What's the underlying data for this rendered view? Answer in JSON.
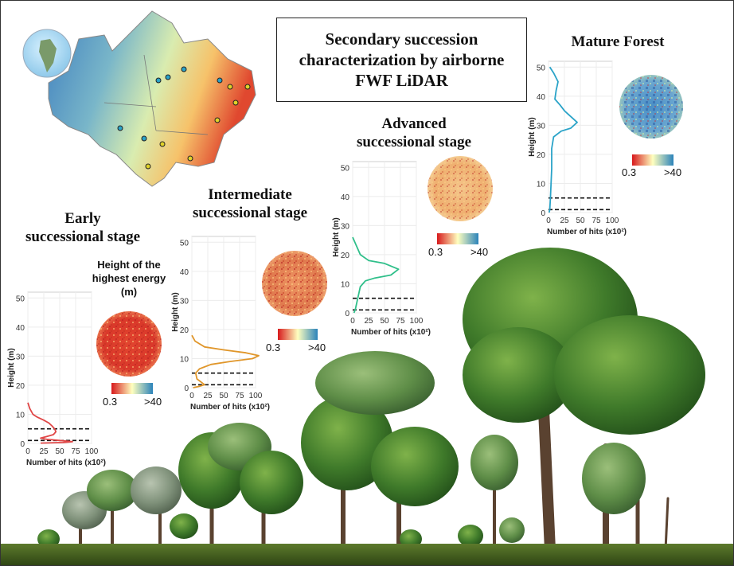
{
  "title": {
    "line1": "Secondary succession",
    "line2": "characterization by airborne",
    "line3": "FWF LiDAR"
  },
  "legend": {
    "title_line1": "Height of the",
    "title_line2": "highest energy",
    "title_line3": "(m)",
    "scale_min": "0.3",
    "scale_max": ">40"
  },
  "colors": {
    "early_curve": "#e04646",
    "intermediate_curve": "#e0962a",
    "advanced_curve": "#2fbf8a",
    "mature_curve": "#2aa3c8",
    "scale_low": "#d7191c",
    "scale_mid": "#ffffbf",
    "scale_high": "#2b83ba"
  },
  "chart_data": [
    {
      "type": "line",
      "stage": "Early successional stage",
      "xlabel": "Number of hits (x10²)",
      "ylabel": "Height (m)",
      "xlim": [
        0,
        100
      ],
      "ylim": [
        0,
        52
      ],
      "xticks": [
        "0",
        "25",
        "50",
        "75",
        "100"
      ],
      "yticks": [
        "0",
        "10",
        "20",
        "30",
        "40",
        "50"
      ],
      "reference_lines_m": [
        1,
        5
      ],
      "points": [
        [
          0,
          14
        ],
        [
          3,
          12
        ],
        [
          8,
          10
        ],
        [
          15,
          9
        ],
        [
          25,
          8
        ],
        [
          33,
          7
        ],
        [
          38,
          6
        ],
        [
          42,
          5
        ],
        [
          44,
          4
        ],
        [
          40,
          3
        ],
        [
          30,
          2.4
        ],
        [
          20,
          1.8
        ],
        [
          30,
          1.4
        ],
        [
          50,
          1
        ],
        [
          70,
          0.6
        ],
        [
          55,
          0.3
        ],
        [
          20,
          0.1
        ]
      ]
    },
    {
      "type": "line",
      "stage": "Intermediate successional stage",
      "xlabel": "Number of hits (x10²)",
      "ylabel": "Height (m)",
      "xlim": [
        0,
        100
      ],
      "ylim": [
        0,
        52
      ],
      "xticks": [
        "0",
        "25",
        "50",
        "75",
        "100"
      ],
      "yticks": [
        "0",
        "10",
        "20",
        "30",
        "40",
        "50"
      ],
      "reference_lines_m": [
        1,
        5
      ],
      "points": [
        [
          0,
          18
        ],
        [
          5,
          16
        ],
        [
          20,
          14
        ],
        [
          50,
          13
        ],
        [
          85,
          12
        ],
        [
          105,
          11
        ],
        [
          95,
          10
        ],
        [
          60,
          9
        ],
        [
          30,
          8
        ],
        [
          12,
          6.5
        ],
        [
          6,
          5
        ],
        [
          8,
          3
        ],
        [
          20,
          1
        ],
        [
          12,
          0.5
        ],
        [
          2,
          0
        ]
      ]
    },
    {
      "type": "line",
      "stage": "Advanced successional stage",
      "xlabel": "Number of hits (x10²)",
      "ylabel": "Height (m)",
      "xlim": [
        0,
        100
      ],
      "ylim": [
        0,
        52
      ],
      "xticks": [
        "0",
        "25",
        "50",
        "75",
        "100"
      ],
      "yticks": [
        "0",
        "10",
        "20",
        "30",
        "40",
        "50"
      ],
      "reference_lines_m": [
        1,
        5
      ],
      "points": [
        [
          0,
          26
        ],
        [
          4,
          24
        ],
        [
          8,
          22
        ],
        [
          12,
          20
        ],
        [
          25,
          18
        ],
        [
          50,
          17
        ],
        [
          72,
          15
        ],
        [
          60,
          13
        ],
        [
          35,
          12
        ],
        [
          20,
          11
        ],
        [
          12,
          9
        ],
        [
          10,
          7
        ],
        [
          8,
          5
        ],
        [
          6,
          3
        ],
        [
          4,
          1
        ],
        [
          2,
          0
        ]
      ]
    },
    {
      "type": "line",
      "stage": "Mature Forest",
      "xlabel": "Number of hits (x10²)",
      "ylabel": "Height (m)",
      "xlim": [
        0,
        100
      ],
      "ylim": [
        0,
        52
      ],
      "xticks": [
        "0",
        "25",
        "50",
        "75",
        "100"
      ],
      "yticks": [
        "0",
        "10",
        "20",
        "30",
        "40",
        "50"
      ],
      "reference_lines_m": [
        1,
        5
      ],
      "points": [
        [
          2,
          50
        ],
        [
          8,
          48
        ],
        [
          15,
          45
        ],
        [
          12,
          42
        ],
        [
          10,
          39
        ],
        [
          18,
          37
        ],
        [
          25,
          35
        ],
        [
          30,
          34
        ],
        [
          35,
          33
        ],
        [
          45,
          31
        ],
        [
          35,
          29
        ],
        [
          20,
          28
        ],
        [
          8,
          26
        ],
        [
          5,
          22
        ],
        [
          5,
          15
        ],
        [
          4,
          10
        ],
        [
          3,
          5
        ],
        [
          2,
          1
        ],
        [
          1,
          0
        ]
      ]
    }
  ],
  "stages": {
    "early_line1": "Early",
    "early_line2": "successional stage",
    "intermediate_line1": "Intermediate",
    "intermediate_line2": "successional stage",
    "advanced_line1": "Advanced",
    "advanced_line2": "successional stage",
    "mature_line1": "Mature Forest"
  }
}
